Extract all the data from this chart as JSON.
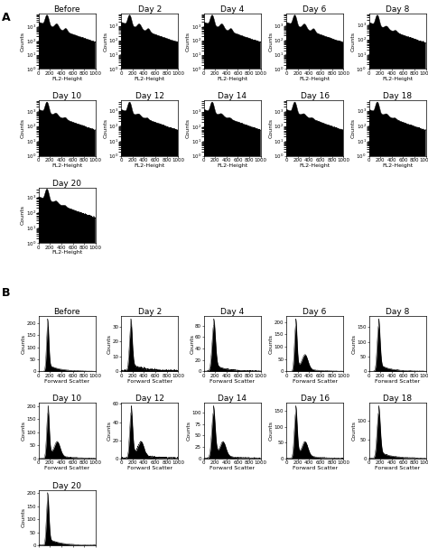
{
  "days": [
    "Before",
    "Day 2",
    "Day 4",
    "Day 6",
    "Day 8",
    "Day 10",
    "Day 12",
    "Day 14",
    "Day 16",
    "Day 18",
    "Day 20"
  ],
  "xlabel_A": "FL2-Height",
  "xlabel_B": "Forward Scatter",
  "ylabel": "Counts",
  "fill_color": "black",
  "title_fontsize": 6.5,
  "label_fontsize": 4.5,
  "tick_fontsize": 4.0,
  "panel_A_label": "A",
  "panel_B_label": "B"
}
